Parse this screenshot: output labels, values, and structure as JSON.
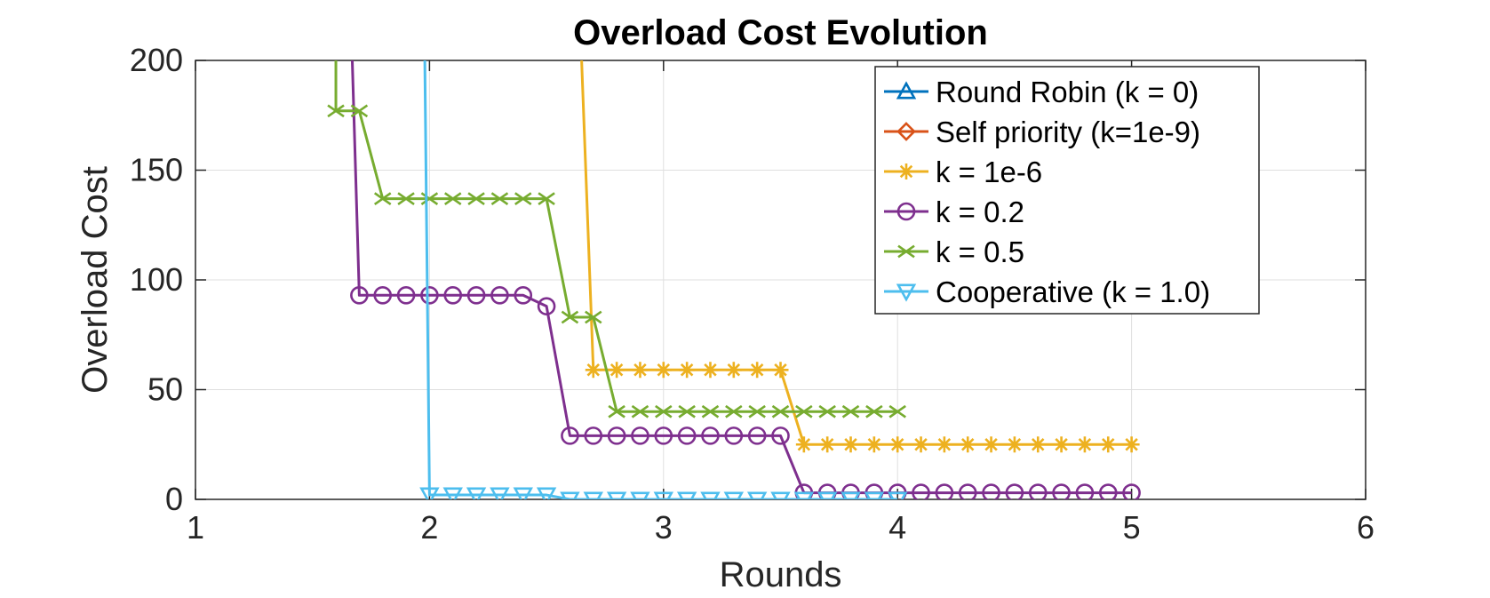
{
  "chart_data": {
    "type": "line",
    "title": "Overload Cost Evolution",
    "xlabel": "Rounds",
    "ylabel": "Overload Cost",
    "xlim": [
      1,
      6
    ],
    "ylim": [
      0,
      200
    ],
    "xticks": [
      1,
      2,
      3,
      4,
      5,
      6
    ],
    "yticks": [
      0,
      50,
      100,
      150,
      200
    ],
    "grid": true,
    "legend_position": "top-right",
    "series": [
      {
        "name": "Round Robin (k = 0)",
        "color": "#0072BD",
        "marker": "triangle-up",
        "x": [],
        "y": []
      },
      {
        "name": "Self priority (k=1e-9)",
        "color": "#D95319",
        "marker": "diamond",
        "x": [],
        "y": []
      },
      {
        "name": "k = 1e-6",
        "color": "#EDB120",
        "marker": "asterisk",
        "x": [
          2.65,
          2.7,
          2.8,
          2.9,
          3.0,
          3.1,
          3.2,
          3.3,
          3.4,
          3.5,
          3.6,
          3.7,
          3.8,
          3.9,
          4.0,
          4.1,
          4.2,
          4.3,
          4.4,
          4.5,
          4.6,
          4.7,
          4.8,
          4.9,
          5.0
        ],
        "y": [
          200,
          59,
          59,
          59,
          59,
          59,
          59,
          59,
          59,
          59,
          25,
          25,
          25,
          25,
          25,
          25,
          25,
          25,
          25,
          25,
          25,
          25,
          25,
          25,
          25
        ],
        "marker_from": 1
      },
      {
        "name": "k = 0.2",
        "color": "#7E2F8E",
        "marker": "circle",
        "x": [
          1.67,
          1.7,
          1.8,
          1.9,
          2.0,
          2.1,
          2.2,
          2.3,
          2.4,
          2.5,
          2.6,
          2.7,
          2.8,
          2.9,
          3.0,
          3.1,
          3.2,
          3.3,
          3.4,
          3.5,
          3.6,
          3.7,
          3.8,
          3.9,
          4.0,
          4.1,
          4.2,
          4.3,
          4.4,
          4.5,
          4.6,
          4.7,
          4.8,
          4.9,
          5.0
        ],
        "y": [
          200,
          93,
          93,
          93,
          93,
          93,
          93,
          93,
          93,
          88,
          29,
          29,
          29,
          29,
          29,
          29,
          29,
          29,
          29,
          29,
          3,
          3,
          3,
          3,
          3,
          3,
          3,
          3,
          3,
          3,
          3,
          3,
          3,
          3,
          3
        ],
        "marker_from": 1
      },
      {
        "name": "k = 0.5",
        "color": "#77AC30",
        "marker": "x",
        "x": [
          1.6,
          1.6,
          1.7,
          1.8,
          1.9,
          2.0,
          2.1,
          2.2,
          2.3,
          2.4,
          2.5,
          2.6,
          2.7,
          2.8,
          2.9,
          3.0,
          3.1,
          3.2,
          3.3,
          3.4,
          3.5,
          3.6,
          3.7,
          3.8,
          3.9,
          4.0
        ],
        "y": [
          200,
          177,
          177,
          137,
          137,
          137,
          137,
          137,
          137,
          137,
          137,
          83,
          83,
          40,
          40,
          40,
          40,
          40,
          40,
          40,
          40,
          40,
          40,
          40,
          40,
          40
        ],
        "marker_from": 1
      },
      {
        "name": "Cooperative (k = 1.0)",
        "color": "#4DBEEE",
        "marker": "triangle-down",
        "x": [
          1.98,
          2.0,
          2.1,
          2.2,
          2.3,
          2.4,
          2.5,
          2.6,
          2.7,
          2.8,
          2.9,
          3.0,
          3.1,
          3.2,
          3.3,
          3.4,
          3.5,
          3.6,
          3.7,
          3.8,
          3.9,
          4.0
        ],
        "y": [
          200,
          2,
          2,
          2,
          2,
          2,
          2,
          0,
          0,
          0,
          0,
          0,
          0,
          0,
          0,
          0,
          0,
          0,
          0,
          0,
          0,
          0
        ],
        "marker_from": 1
      }
    ]
  }
}
